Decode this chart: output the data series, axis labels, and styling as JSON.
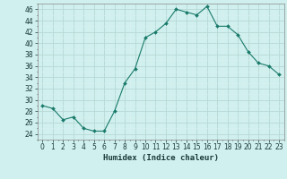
{
  "x": [
    0,
    1,
    2,
    3,
    4,
    5,
    6,
    7,
    8,
    9,
    10,
    11,
    12,
    13,
    14,
    15,
    16,
    17,
    18,
    19,
    20,
    21,
    22,
    23
  ],
  "y": [
    29,
    28.5,
    26.5,
    27,
    25,
    24.5,
    24.5,
    28,
    33,
    35.5,
    41,
    42,
    43.5,
    46,
    45.5,
    45,
    46.5,
    43,
    43,
    41.5,
    38.5,
    36.5,
    36,
    34.5
  ],
  "line_color": "#1a7a6a",
  "marker": "D",
  "marker_size": 2,
  "bg_color": "#cff0ee",
  "grid_major_color": "#b8d8d4",
  "grid_minor_color": "#daf0ee",
  "xlabel": "Humidex (Indice chaleur)",
  "xlim": [
    -0.5,
    23.5
  ],
  "ylim": [
    23,
    47
  ],
  "yticks": [
    24,
    26,
    28,
    30,
    32,
    34,
    36,
    38,
    40,
    42,
    44,
    46
  ],
  "xticks": [
    0,
    1,
    2,
    3,
    4,
    5,
    6,
    7,
    8,
    9,
    10,
    11,
    12,
    13,
    14,
    15,
    16,
    17,
    18,
    19,
    20,
    21,
    22,
    23
  ],
  "tick_fontsize": 5.5,
  "label_fontsize": 6.5
}
